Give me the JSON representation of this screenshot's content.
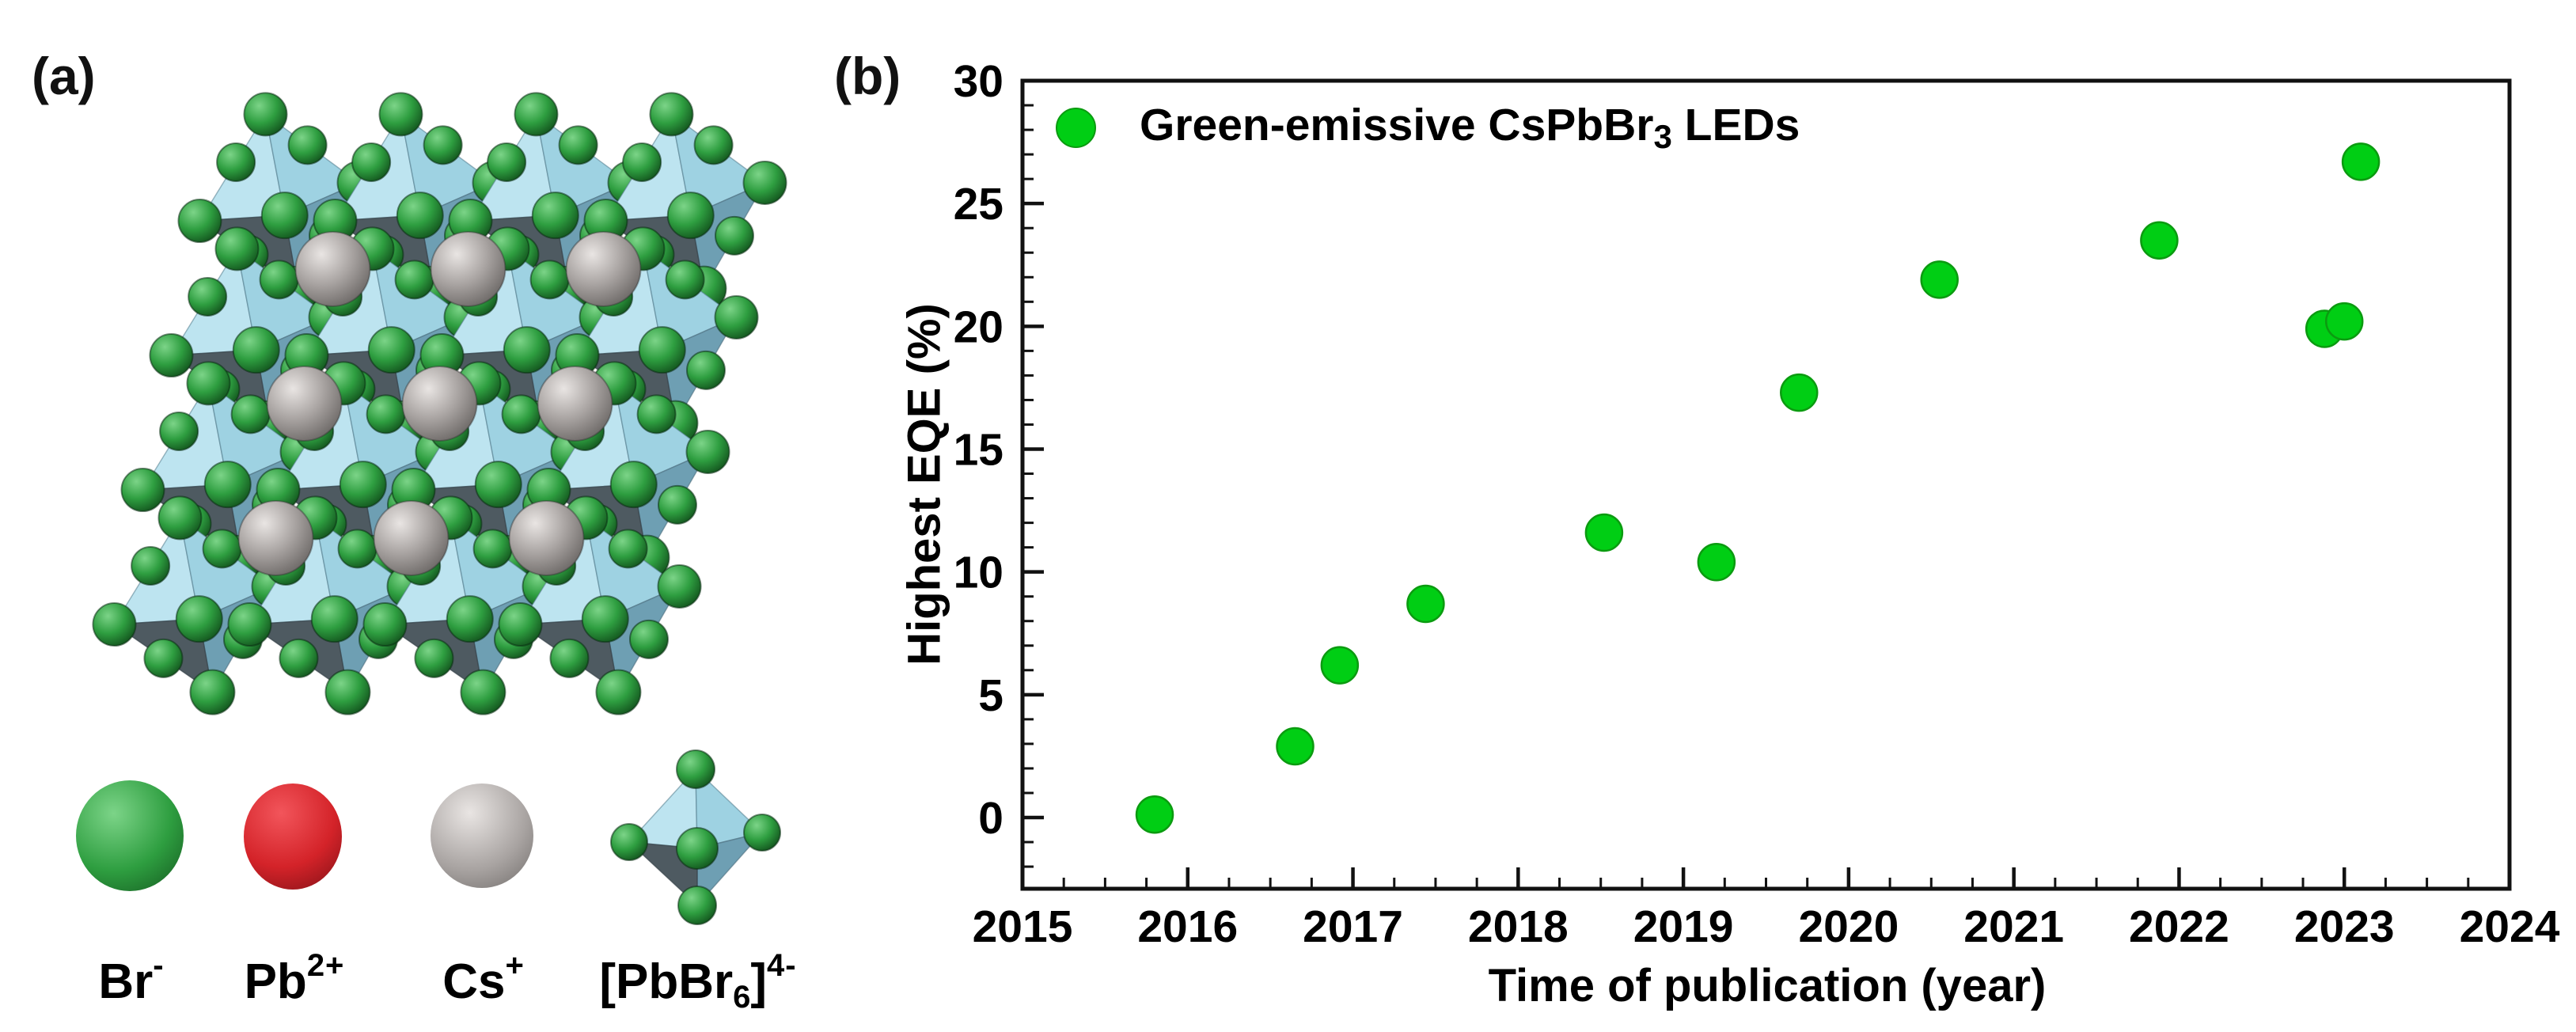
{
  "canvas": {
    "background": "#ffffff"
  },
  "panel_a": {
    "label": "(a)",
    "structure": {
      "description": "CsPbBr3 perovskite crystal structure, corner-sharing PbBr6 octahedra with Cs cations",
      "octahedra_rows": 4,
      "octahedra_cols": 4,
      "cs_sphere_rows": 3,
      "cs_sphere_cols": 3,
      "colors": {
        "octa_face_light": "#BDE4F0",
        "octa_face_mid": "#9ED2E2",
        "octa_face_steel": "#6E9FB3",
        "octa_face_dark": "#4E5A61",
        "octa_back": "#8ABCCE",
        "br_green_hi": "#7CD488",
        "br_green": "#2E9E40",
        "br_green_dark": "#14571F",
        "cs_gray_hi": "#E9E5E3",
        "cs_gray": "#A8A3A1",
        "cs_gray_dark": "#6F6B69"
      }
    },
    "legend_items": [
      {
        "name": "bromide",
        "label_main": "Br",
        "label_sup": "-",
        "sphere": "green"
      },
      {
        "name": "lead",
        "label_main": "Pb",
        "label_sup": "2+",
        "sphere": "red"
      },
      {
        "name": "cesium",
        "label_main": "Cs",
        "label_sup": "+",
        "sphere": "gray"
      },
      {
        "name": "lead-bromide-octahedron",
        "label_pre": "[PbBr",
        "label_sub": "6",
        "label_mid": "]",
        "label_sup": "4-",
        "sphere": "octahedron"
      }
    ],
    "red_sphere_colors": {
      "hi": "#F2555B",
      "base": "#D42329",
      "dark": "#7E1016"
    }
  },
  "panel_b": {
    "label": "(b)",
    "chart_data": {
      "type": "scatter",
      "title": "",
      "xlabel": "Time of publication (year)",
      "ylabel": "Highest EQE (%)",
      "xlim": [
        2015,
        2024
      ],
      "ylim": [
        -2.9,
        30
      ],
      "x_major_ticks": [
        2015,
        2016,
        2017,
        2018,
        2019,
        2020,
        2021,
        2022,
        2023,
        2024
      ],
      "x_minor_step": 0.25,
      "y_major_ticks": [
        0,
        5,
        10,
        15,
        20,
        25,
        30
      ],
      "y_minor_step": 1,
      "grid": false,
      "frame": true,
      "legend_position": "top-left-inside",
      "legend": {
        "label_pre": "Green-emissive CsPbBr",
        "label_sub": "3",
        "label_post": " LEDs",
        "label_full": "Green-emissive CsPbBr3 LEDs"
      },
      "marker": {
        "color": "#00CE14",
        "edge": "#0B9B10",
        "radius_px": 23
      },
      "series": [
        {
          "name": "Green-emissive CsPbBr3 LEDs",
          "points": [
            {
              "year": 2015.8,
              "eqe": 0.12
            },
            {
              "year": 2016.65,
              "eqe": 2.9
            },
            {
              "year": 2016.92,
              "eqe": 6.2
            },
            {
              "year": 2017.44,
              "eqe": 8.7
            },
            {
              "year": 2018.52,
              "eqe": 11.6
            },
            {
              "year": 2019.2,
              "eqe": 10.4
            },
            {
              "year": 2019.7,
              "eqe": 17.3
            },
            {
              "year": 2020.55,
              "eqe": 21.9
            },
            {
              "year": 2021.88,
              "eqe": 23.5
            },
            {
              "year": 2022.88,
              "eqe": 19.9
            },
            {
              "year": 2023.0,
              "eqe": 20.2
            },
            {
              "year": 2023.1,
              "eqe": 26.7
            }
          ]
        }
      ]
    }
  }
}
